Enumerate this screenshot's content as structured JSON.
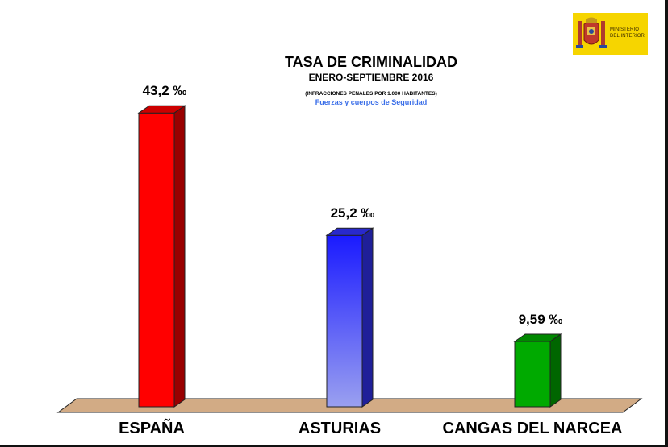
{
  "logo": {
    "line1": "MINISTERIO",
    "line2": "DEL INTERIOR"
  },
  "chart_data": {
    "type": "bar",
    "title": "TASA DE CRIMINALIDAD",
    "subtitle": "ENERO-SEPTIEMBRE 2016",
    "note": "(INFRACCIONES PENALES POR 1.000 HABITANTES)",
    "source": "Fuerzas y cuerpos de Seguridad",
    "categories": [
      "ESPAÑA",
      "ASTURIAS",
      "CANGAS DEL NARCEA"
    ],
    "values": [
      43.2,
      25.2,
      9.59
    ],
    "value_labels": [
      "43,2 ‰",
      "25,2 ‰",
      "9,59 ‰"
    ],
    "colors": [
      "#ff0000",
      "#3333ff",
      "#00aa00"
    ],
    "floor_color": "#d2ab85",
    "ylim": [
      0,
      45
    ],
    "grid": false,
    "style": "3d-bars"
  }
}
